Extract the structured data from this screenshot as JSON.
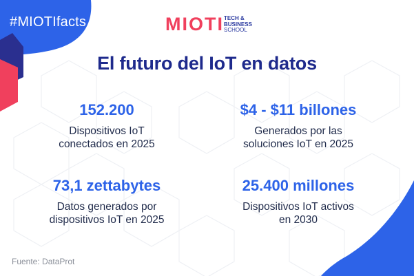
{
  "hashtag": "#MIOTIfacts",
  "logo": {
    "word": "MIOTI",
    "sub_line1": "TECH &",
    "sub_line2": "BUSINESS",
    "sub_line3": "SCHOOL"
  },
  "title": "El futuro del IoT en datos",
  "facts": [
    {
      "value": "152.200",
      "desc_line1": "Dispositivos IoT",
      "desc_line2": "conectados en 2025"
    },
    {
      "value": "$4 - $11 billones",
      "desc_line1": "Generados por las",
      "desc_line2": "soluciones IoT en 2025"
    },
    {
      "value": "73,1 zettabytes",
      "desc_line1": "Datos generados por",
      "desc_line2": "dispositivos IoT en 2025"
    },
    {
      "value": "25.400 millones",
      "desc_line1": "Dispositivos IoT activos",
      "desc_line2": "en 2030"
    }
  ],
  "source": "Fuente: DataProt",
  "colors": {
    "blue": "#2d63e8",
    "navy": "#1e2a8c",
    "pink": "#f0405d",
    "dark_blue": "#2a2f8f"
  }
}
